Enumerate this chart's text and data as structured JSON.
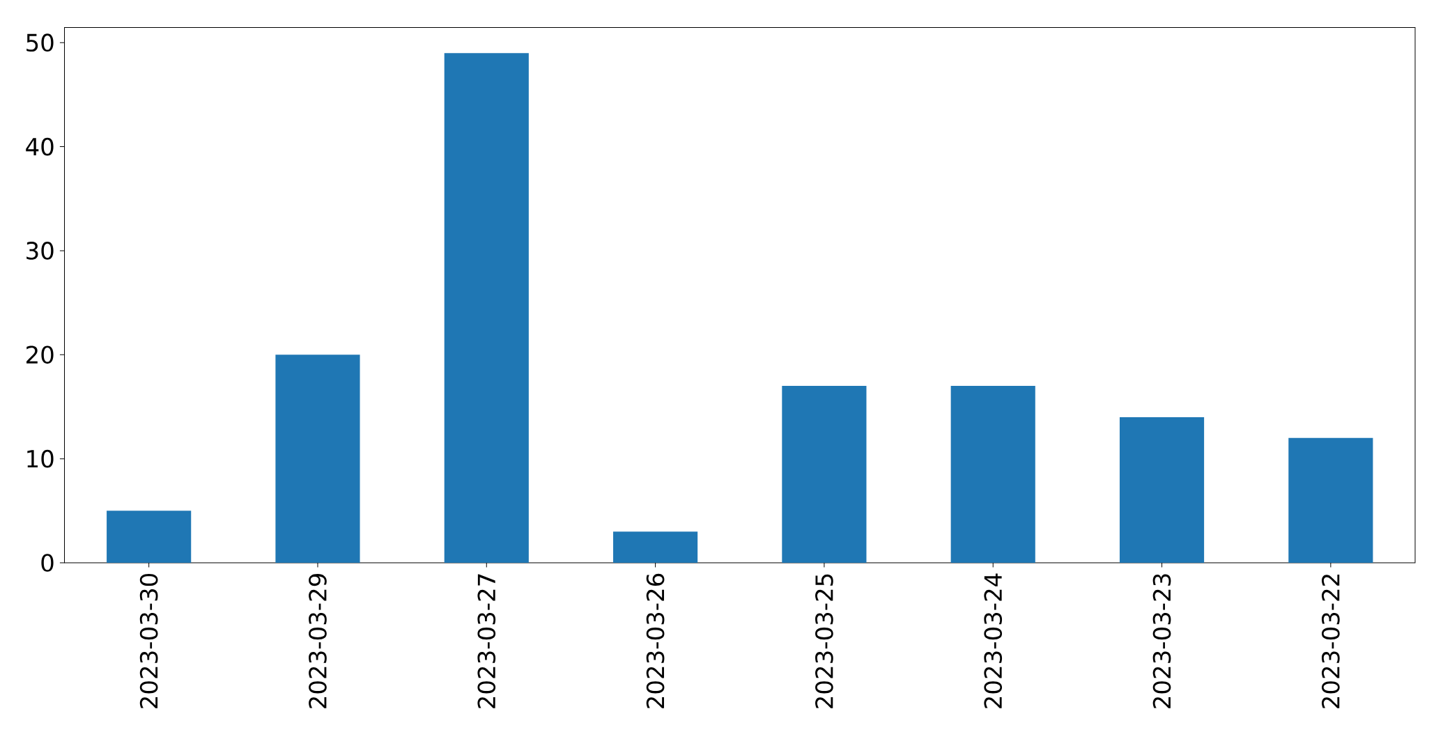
{
  "chart_data": {
    "type": "bar",
    "categories": [
      "2023-03-30",
      "2023-03-29",
      "2023-03-27",
      "2023-03-26",
      "2023-03-25",
      "2023-03-24",
      "2023-03-23",
      "2023-03-22"
    ],
    "values": [
      5,
      20,
      49,
      3,
      17,
      17,
      14,
      12
    ],
    "color": "#1f77b4",
    "ylim": [
      0,
      51.45
    ],
    "yticks": [
      0,
      10,
      20,
      30,
      40,
      50
    ]
  }
}
